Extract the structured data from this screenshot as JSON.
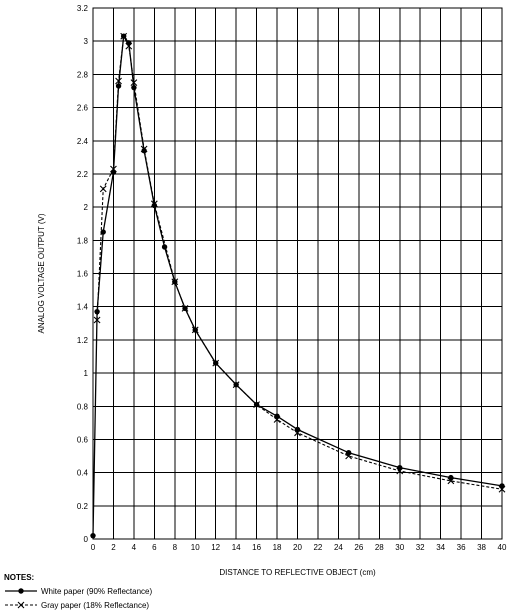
{
  "chart_data": {
    "type": "line",
    "title": "",
    "xlabel": "DISTANCE TO REFLECTIVE OBJECT (cm)",
    "ylabel": "ANALOG VOLTAGE OUTPUT (V)",
    "xlim": [
      0,
      40
    ],
    "ylim": [
      0,
      3.2
    ],
    "x_ticks": [
      0,
      2,
      4,
      6,
      8,
      10,
      12,
      14,
      16,
      18,
      20,
      22,
      24,
      26,
      28,
      30,
      32,
      34,
      36,
      38,
      40
    ],
    "y_ticks": [
      "0",
      "0.2",
      "0.4",
      "0.6",
      "0.8",
      "1",
      "1.2",
      "1.4",
      "1.6",
      "1.8",
      "2",
      "2.2",
      "2.4",
      "2.6",
      "2.8",
      "3",
      "3.2"
    ],
    "grid": true,
    "legend_title": "NOTES:",
    "legend_position": "bottom-left",
    "series": [
      {
        "name": "White paper (90% Reflectance)",
        "line_style": "solid",
        "marker": "circle",
        "color": "#000000",
        "x": [
          0,
          0.4,
          1,
          2,
          2.5,
          3,
          3.5,
          4,
          5,
          6,
          7,
          8,
          9,
          10,
          12,
          14,
          16,
          18,
          20,
          25,
          30,
          35,
          40
        ],
        "y": [
          0.02,
          1.37,
          1.85,
          2.21,
          2.73,
          3.03,
          2.99,
          2.72,
          2.34,
          2.01,
          1.76,
          1.55,
          1.39,
          1.26,
          1.06,
          0.93,
          0.81,
          0.74,
          0.66,
          0.52,
          0.43,
          0.37,
          0.32
        ]
      },
      {
        "name": "Gray paper (18% Reflectance)",
        "line_style": "dashed",
        "marker": "x",
        "color": "#000000",
        "x": [
          0.4,
          1,
          2,
          2.5,
          3,
          3.5,
          4,
          5,
          6,
          8,
          9,
          10,
          12,
          14,
          16,
          18,
          20,
          25,
          30,
          35,
          40
        ],
        "y": [
          1.32,
          2.11,
          2.23,
          2.76,
          3.03,
          2.97,
          2.75,
          2.35,
          2.02,
          1.55,
          1.39,
          1.26,
          1.06,
          0.93,
          0.81,
          0.72,
          0.64,
          0.5,
          0.41,
          0.35,
          0.3
        ]
      }
    ]
  }
}
